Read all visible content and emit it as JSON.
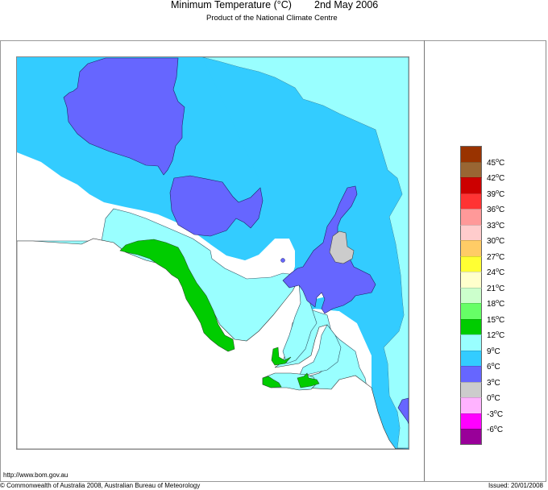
{
  "header": {
    "title": "Minimum Temperature (°C)",
    "date": "2nd May 2006",
    "subtitle": "Product of the National Climate Centre"
  },
  "footer": {
    "url": "http://www.bom.gov.au",
    "copyright": "© Commonwealth of Australia 2008, Australian Bureau of Meteorology",
    "issued": "Issued: 20/01/2008"
  },
  "legend": {
    "unit": "°C",
    "bins": [
      {
        "color": "#993300"
      },
      {
        "color": "#996633"
      },
      {
        "color": "#cc0000"
      },
      {
        "color": "#ff3333"
      },
      {
        "color": "#ff9999"
      },
      {
        "color": "#ffcccc"
      },
      {
        "color": "#ffcc66"
      },
      {
        "color": "#ffff33"
      },
      {
        "color": "#ffffcc"
      },
      {
        "color": "#ccffcc"
      },
      {
        "color": "#66ff66"
      },
      {
        "color": "#00cc00"
      },
      {
        "color": "#99ffff"
      },
      {
        "color": "#33ccff"
      },
      {
        "color": "#6666ff"
      },
      {
        "color": "#cccccc"
      },
      {
        "color": "#ffb3ff"
      },
      {
        "color": "#ff00ff"
      },
      {
        "color": "#990099"
      }
    ],
    "labels": [
      "45°C",
      "42°C",
      "39°C",
      "36°C",
      "33°C",
      "30°C",
      "27°C",
      "24°C",
      "21°C",
      "18°C",
      "15°C",
      "12°C",
      "9°C",
      "6°C",
      "3°C",
      "0°C",
      "-3°C",
      "-6°C"
    ]
  },
  "chart_data": {
    "type": "heatmap",
    "title": "Minimum Temperature (°C) 2nd May 2006",
    "subtitle": "Product of the National Climate Centre",
    "region": "South Australia",
    "legend_position": "right",
    "color_scale": {
      "thresholds": [
        -6,
        -3,
        0,
        3,
        6,
        9,
        12,
        15,
        18,
        21,
        24,
        27,
        30,
        33,
        36,
        39,
        42,
        45
      ],
      "colors_low_to_high": [
        "#990099",
        "#ff00ff",
        "#ffb3ff",
        "#cccccc",
        "#6666ff",
        "#33ccff",
        "#99ffff",
        "#00cc00",
        "#66ff66",
        "#ccffcc",
        "#ffffcc",
        "#ffff33",
        "#ffcc66",
        "#ffcccc",
        "#ff9999",
        "#ff3333",
        "#cc0000",
        "#996633",
        "#993300"
      ]
    },
    "regions_depicted": [
      {
        "range": "6–9°C",
        "color": "#33ccff",
        "area": "most of the state interior"
      },
      {
        "range": "3–6°C",
        "color": "#6666ff",
        "area": "north-west, central-west, Flinders Ranges, far south-east edge"
      },
      {
        "range": "0–3°C",
        "color": "#cccccc",
        "area": "small patch in Flinders Ranges"
      },
      {
        "range": "9–12°C",
        "color": "#99ffff",
        "area": "north-east corner, coastal fringe, gulfs"
      },
      {
        "range": "12–15°C",
        "color": "#00cc00",
        "area": "Eyre Peninsula west coast, Yorke Peninsula tip, Kangaroo Island"
      }
    ]
  }
}
